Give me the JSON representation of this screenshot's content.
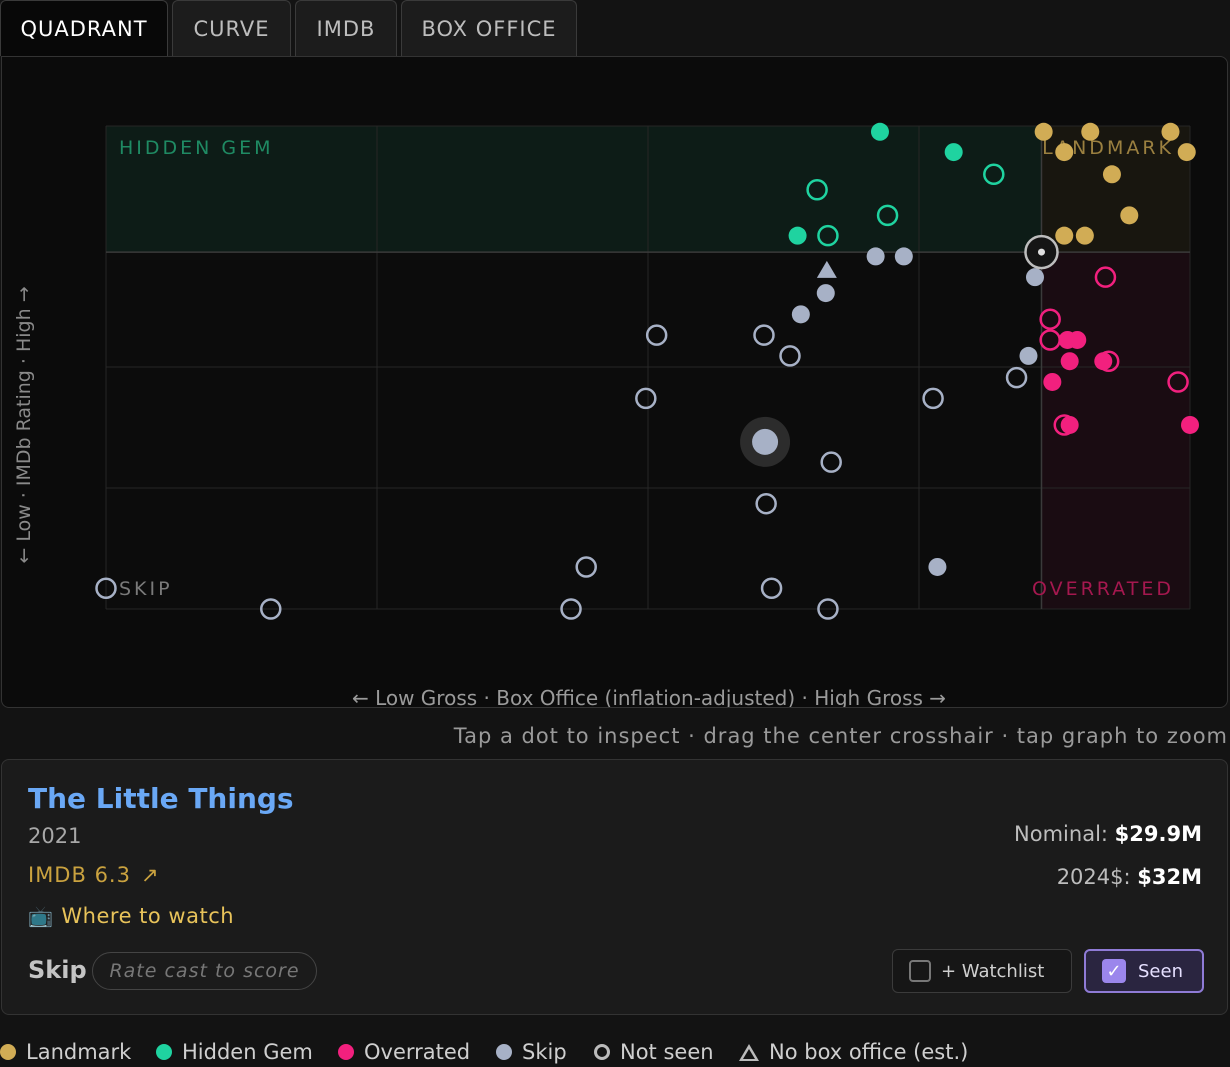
{
  "tabs": [
    {
      "label": "QUADRANT",
      "active": true
    },
    {
      "label": "CURVE",
      "active": false
    },
    {
      "label": "IMDB",
      "active": false
    },
    {
      "label": "BOX OFFICE",
      "active": false
    }
  ],
  "graph": {
    "y_axis_label": "← Low · IMDb Rating · High →",
    "x_axis_label": "← Low Gross · Box Office (inflation-adjusted) · High Gross →",
    "quadrants": {
      "top_left": "HIDDEN GEM",
      "top_right": "LANDMARK",
      "bottom_left": "SKIP",
      "bottom_right": "OVERRATED"
    },
    "hint": "Tap a dot to inspect · drag the center crosshair · tap graph to zoom"
  },
  "chart_data": {
    "type": "scatter",
    "x_label": "Box Office (inflation-adjusted)",
    "y_label": "IMDb Rating",
    "categories": [
      "landmark",
      "hidden_gem",
      "overrated",
      "skip"
    ],
    "colors": {
      "landmark": "#d1ac55",
      "hidden_gem": "#1fd3a0",
      "overrated": "#f2207e",
      "skip": "#a7b1c6"
    },
    "points": [
      {
        "cat": "landmark",
        "seen": true,
        "x": 0.865,
        "y": 0.988
      },
      {
        "cat": "landmark",
        "seen": true,
        "x": 0.908,
        "y": 0.988
      },
      {
        "cat": "landmark",
        "seen": true,
        "x": 0.982,
        "y": 0.988
      },
      {
        "cat": "landmark",
        "seen": true,
        "x": 0.884,
        "y": 0.946
      },
      {
        "cat": "landmark",
        "seen": true,
        "x": 0.997,
        "y": 0.946
      },
      {
        "cat": "landmark",
        "seen": true,
        "x": 0.928,
        "y": 0.9
      },
      {
        "cat": "landmark",
        "seen": true,
        "x": 0.944,
        "y": 0.815
      },
      {
        "cat": "landmark",
        "seen": true,
        "x": 0.884,
        "y": 0.773
      },
      {
        "cat": "landmark",
        "seen": true,
        "x": 0.903,
        "y": 0.773
      },
      {
        "cat": "hidden_gem",
        "seen": true,
        "x": 0.714,
        "y": 0.988
      },
      {
        "cat": "hidden_gem",
        "seen": true,
        "x": 0.782,
        "y": 0.946
      },
      {
        "cat": "hidden_gem",
        "seen": false,
        "x": 0.819,
        "y": 0.9
      },
      {
        "cat": "hidden_gem",
        "seen": false,
        "x": 0.656,
        "y": 0.868
      },
      {
        "cat": "hidden_gem",
        "seen": false,
        "x": 0.721,
        "y": 0.815
      },
      {
        "cat": "hidden_gem",
        "seen": true,
        "x": 0.638,
        "y": 0.773
      },
      {
        "cat": "hidden_gem",
        "seen": false,
        "x": 0.666,
        "y": 0.773
      },
      {
        "cat": "overrated",
        "seen": false,
        "x": 0.922,
        "y": 0.687
      },
      {
        "cat": "overrated",
        "seen": false,
        "x": 0.871,
        "y": 0.6
      },
      {
        "cat": "overrated",
        "seen": false,
        "x": 0.871,
        "y": 0.557
      },
      {
        "cat": "overrated",
        "seen": true,
        "x": 0.887,
        "y": 0.557
      },
      {
        "cat": "overrated",
        "seen": true,
        "x": 0.896,
        "y": 0.557
      },
      {
        "cat": "overrated",
        "seen": true,
        "x": 0.889,
        "y": 0.513
      },
      {
        "cat": "overrated",
        "seen": false,
        "x": 0.925,
        "y": 0.513
      },
      {
        "cat": "overrated",
        "seen": true,
        "x": 0.92,
        "y": 0.513
      },
      {
        "cat": "overrated",
        "seen": true,
        "x": 0.873,
        "y": 0.47
      },
      {
        "cat": "overrated",
        "seen": false,
        "x": 0.989,
        "y": 0.47
      },
      {
        "cat": "overrated",
        "seen": false,
        "x": 0.884,
        "y": 0.381
      },
      {
        "cat": "overrated",
        "seen": true,
        "x": 0.889,
        "y": 0.381
      },
      {
        "cat": "overrated",
        "seen": true,
        "x": 1.0,
        "y": 0.381
      },
      {
        "cat": "skip",
        "seen": true,
        "x": 0.71,
        "y": 0.73
      },
      {
        "cat": "skip",
        "seen": true,
        "x": 0.736,
        "y": 0.73
      },
      {
        "cat": "skip",
        "seen": true,
        "x": 0.857,
        "y": 0.687
      },
      {
        "cat": "skip",
        "seen": true,
        "x": 0.664,
        "y": 0.654
      },
      {
        "cat": "skip",
        "seen": true,
        "x": 0.641,
        "y": 0.61
      },
      {
        "cat": "skip",
        "seen": false,
        "x": 0.508,
        "y": 0.567
      },
      {
        "cat": "skip",
        "seen": false,
        "x": 0.607,
        "y": 0.567
      },
      {
        "cat": "skip",
        "seen": false,
        "x": 0.631,
        "y": 0.524
      },
      {
        "cat": "skip",
        "seen": true,
        "x": 0.851,
        "y": 0.524
      },
      {
        "cat": "skip",
        "seen": false,
        "x": 0.84,
        "y": 0.479
      },
      {
        "cat": "skip",
        "seen": false,
        "x": 0.498,
        "y": 0.436
      },
      {
        "cat": "skip",
        "seen": false,
        "x": 0.763,
        "y": 0.436
      },
      {
        "cat": "skip",
        "seen": false,
        "x": 0.669,
        "y": 0.304
      },
      {
        "cat": "skip",
        "seen": false,
        "x": 0.609,
        "y": 0.218
      },
      {
        "cat": "skip",
        "seen": false,
        "x": 0.443,
        "y": 0.087
      },
      {
        "cat": "skip",
        "seen": true,
        "x": 0.767,
        "y": 0.087
      },
      {
        "cat": "skip",
        "seen": false,
        "x": 0.0,
        "y": 0.043
      },
      {
        "cat": "skip",
        "seen": false,
        "x": 0.614,
        "y": 0.043
      },
      {
        "cat": "skip",
        "seen": false,
        "x": 0.152,
        "y": 0.0
      },
      {
        "cat": "skip",
        "seen": false,
        "x": 0.429,
        "y": 0.0
      },
      {
        "cat": "skip",
        "seen": false,
        "x": 0.666,
        "y": 0.0
      }
    ],
    "no_box_office_points": [
      {
        "cat": "skip",
        "x": 0.665,
        "y": 0.702
      }
    ],
    "selected_point": {
      "cat": "skip",
      "x": 0.608,
      "y": 0.346
    },
    "crosshair": {
      "x": 0.863,
      "y": 0.739
    }
  },
  "detail": {
    "title": "The Little Things",
    "year": "2021",
    "imdb": "IMDB 6.3",
    "imdb_link_icon": "↗",
    "where_to_watch_icon": "📺",
    "where_to_watch": "Where to watch",
    "verdict": "Skip",
    "rate_cast_placeholder": "Rate cast to score",
    "nominal_label": "Nominal:",
    "nominal_value": "$29.9M",
    "adjusted_label": "2024$:",
    "adjusted_value": "$32M",
    "watchlist_label": "+ Watchlist",
    "seen_label": "Seen",
    "seen_check": "✓",
    "seen_checked": true,
    "watchlist_checked": false
  },
  "legend": [
    {
      "label": "Landmark",
      "symbol": "dot",
      "color": "#d1ac55"
    },
    {
      "label": "Hidden Gem",
      "symbol": "dot",
      "color": "#1fd3a0"
    },
    {
      "label": "Overrated",
      "symbol": "dot",
      "color": "#f2207e"
    },
    {
      "label": "Skip",
      "symbol": "dot",
      "color": "#a7b1c6"
    },
    {
      "label": "Not seen",
      "symbol": "ring",
      "color": "#bbbbbb"
    },
    {
      "label": "No box office (est.)",
      "symbol": "triangle",
      "color": "#bbbbbb"
    }
  ]
}
